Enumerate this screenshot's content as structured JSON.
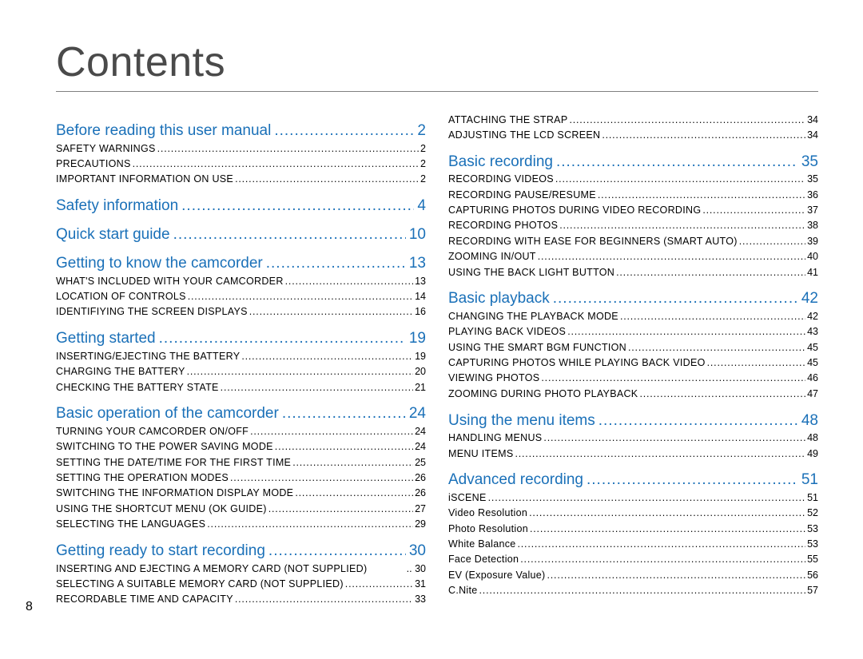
{
  "title": "Contents",
  "page_number": "8",
  "colors": {
    "title_color": "#4a4a4a",
    "section_color": "#1a70b8",
    "sub_color": "#000000",
    "rule_color": "#808080",
    "background": "#ffffff"
  },
  "typography": {
    "title_fontsize_pt": 39,
    "section_fontsize_pt": 14,
    "sub_fontsize_pt": 9.5,
    "page_number_fontsize_pt": 12,
    "font_family": "Helvetica Neue"
  },
  "left_column": [
    {
      "type": "section",
      "label": "Before reading this user manual",
      "page": "2"
    },
    {
      "type": "sub",
      "label": "SAFETY WARNINGS",
      "page": "2"
    },
    {
      "type": "sub",
      "label": "PRECAUTIONS",
      "page": "2"
    },
    {
      "type": "sub",
      "label": "IMPORTANT INFORMATION ON USE",
      "page": "2"
    },
    {
      "type": "section",
      "label": "Safety information",
      "page": "4"
    },
    {
      "type": "section",
      "label": "Quick start guide",
      "page": "10"
    },
    {
      "type": "section",
      "label": "Getting to know the camcorder",
      "page": "13"
    },
    {
      "type": "sub",
      "label": "WHAT'S INCLUDED WITH YOUR CAMCORDER",
      "page": "13"
    },
    {
      "type": "sub",
      "label": "LOCATION OF CONTROLS",
      "page": "14"
    },
    {
      "type": "sub",
      "label": "IDENTIFIYING THE SCREEN DISPLAYS",
      "page": "16"
    },
    {
      "type": "section",
      "label": "Getting started",
      "page": "19"
    },
    {
      "type": "sub",
      "label": "INSERTING/EJECTING THE BATTERY",
      "page": "19"
    },
    {
      "type": "sub",
      "label": "CHARGING THE BATTERY",
      "page": "20"
    },
    {
      "type": "sub",
      "label": "CHECKING THE BATTERY STATE",
      "page": "21"
    },
    {
      "type": "section",
      "label": "Basic operation of the camcorder",
      "page": "24"
    },
    {
      "type": "sub",
      "label": "TURNING YOUR CAMCORDER ON/OFF",
      "page": "24"
    },
    {
      "type": "sub",
      "label": "SWITCHING TO THE POWER SAVING MODE",
      "page": "24"
    },
    {
      "type": "sub",
      "label": "SETTING THE DATE/TIME FOR THE FIRST TIME",
      "page": "25"
    },
    {
      "type": "sub",
      "label": "SETTING THE OPERATION MODES",
      "page": "26"
    },
    {
      "type": "sub",
      "label": "SWITCHING THE INFORMATION DISPLAY MODE",
      "page": "26"
    },
    {
      "type": "sub",
      "label": "USING THE SHORTCUT MENU (OK GUIDE)",
      "page": "27"
    },
    {
      "type": "sub",
      "label": "SELECTING THE LANGUAGES",
      "page": "29"
    },
    {
      "type": "section",
      "label": "Getting ready to start recording",
      "page": "30"
    },
    {
      "type": "sub",
      "label": "INSERTING AND EJECTING A MEMORY CARD (NOT SUPPLIED)",
      "page": "30",
      "nodots": true
    },
    {
      "type": "sub",
      "label": "SELECTING A SUITABLE MEMORY CARD (NOT SUPPLIED)",
      "page": "31"
    },
    {
      "type": "sub",
      "label": "RECORDABLE TIME AND CAPACITY",
      "page": "33"
    }
  ],
  "right_column": [
    {
      "type": "sub",
      "label": "ATTACHING THE STRAP",
      "page": "34"
    },
    {
      "type": "sub",
      "label": "ADJUSTING THE LCD SCREEN",
      "page": "34"
    },
    {
      "type": "section",
      "label": "Basic recording",
      "page": "35"
    },
    {
      "type": "sub",
      "label": "RECORDING VIDEOS",
      "page": "35"
    },
    {
      "type": "sub",
      "label": "RECORDING PAUSE/RESUME",
      "page": "36"
    },
    {
      "type": "sub",
      "label": "CAPTURING PHOTOS DURING VIDEO RECORDING",
      "page": "37"
    },
    {
      "type": "sub",
      "label": "RECORDING PHOTOS",
      "page": "38"
    },
    {
      "type": "sub",
      "label": "RECORDING WITH EASE FOR BEGINNERS (SMART AUTO)",
      "page": "39"
    },
    {
      "type": "sub",
      "label": "ZOOMING IN/OUT",
      "page": "40"
    },
    {
      "type": "sub",
      "label": "USING THE BACK LIGHT BUTTON",
      "page": "41"
    },
    {
      "type": "section",
      "label": "Basic playback",
      "page": "42"
    },
    {
      "type": "sub",
      "label": "CHANGING THE PLAYBACK MODE",
      "page": "42"
    },
    {
      "type": "sub",
      "label": "PLAYING BACK VIDEOS",
      "page": "43"
    },
    {
      "type": "sub",
      "label": "USING THE SMART BGM FUNCTION",
      "page": "45"
    },
    {
      "type": "sub",
      "label": "CAPTURING PHOTOS WHILE PLAYING BACK VIDEO",
      "page": "45"
    },
    {
      "type": "sub",
      "label": "VIEWING PHOTOS",
      "page": "46"
    },
    {
      "type": "sub",
      "label": "ZOOMING DURING PHOTO PLAYBACK",
      "page": "47"
    },
    {
      "type": "section",
      "label": "Using the menu items",
      "page": "48"
    },
    {
      "type": "sub",
      "label": "HANDLING MENUS",
      "page": "48"
    },
    {
      "type": "sub",
      "label": "MENU ITEMS",
      "page": "49"
    },
    {
      "type": "section",
      "label": "Advanced recording",
      "page": "51"
    },
    {
      "type": "sub",
      "label": "iSCENE",
      "page": "51"
    },
    {
      "type": "sub",
      "label": "Video Resolution",
      "page": "52"
    },
    {
      "type": "sub",
      "label": "Photo Resolution",
      "page": "53"
    },
    {
      "type": "sub",
      "label": "White Balance",
      "page": "53"
    },
    {
      "type": "sub",
      "label": "Face Detection",
      "page": "55"
    },
    {
      "type": "sub",
      "label": "EV (Exposure Value)",
      "page": "56"
    },
    {
      "type": "sub",
      "label": "C.Nite",
      "page": "57"
    }
  ]
}
